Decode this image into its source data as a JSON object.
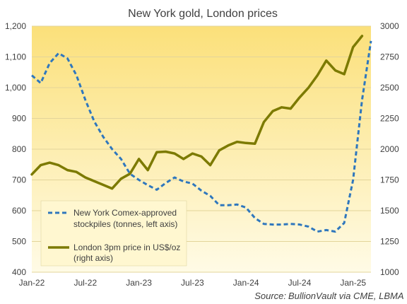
{
  "chart_data": {
    "type": "line",
    "title": "New York gold, London prices",
    "x_tick_labels": [
      "Jan-22",
      "Jul-22",
      "Jan-23",
      "Jul-23",
      "Jan-24",
      "Jul-24",
      "Jan-25"
    ],
    "x_range": [
      "2022-01",
      "2025-03"
    ],
    "y_left": {
      "range": [
        400,
        1200
      ],
      "ticks": [
        "400",
        "500",
        "600",
        "700",
        "800",
        "900",
        "1,000",
        "1,100",
        "1,200"
      ]
    },
    "y_right": {
      "range": [
        1000,
        3000
      ],
      "ticks": [
        "1000",
        "1250",
        "1500",
        "1750",
        "2000",
        "2250",
        "2500",
        "2750",
        "3000"
      ]
    },
    "grid": true,
    "legend_position": "bottom-left",
    "background_gradient": [
      "#fbe07a",
      "#fffbe6"
    ],
    "series": [
      {
        "name": "New York Comex-approved stockpiles (tonnes, left axis)",
        "axis": "left",
        "style": "dashed",
        "color": "#2f77bd",
        "points": [
          [
            "2022-01",
            1040
          ],
          [
            "2022-02",
            1015
          ],
          [
            "2022-03",
            1080
          ],
          [
            "2022-04",
            1112
          ],
          [
            "2022-05",
            1095
          ],
          [
            "2022-06",
            1040
          ],
          [
            "2022-07",
            960
          ],
          [
            "2022-08",
            890
          ],
          [
            "2022-09",
            840
          ],
          [
            "2022-10",
            800
          ],
          [
            "2022-11",
            768
          ],
          [
            "2022-12",
            720
          ],
          [
            "2023-01",
            700
          ],
          [
            "2023-02",
            683
          ],
          [
            "2023-03",
            668
          ],
          [
            "2023-04",
            690
          ],
          [
            "2023-05",
            708
          ],
          [
            "2023-06",
            695
          ],
          [
            "2023-07",
            688
          ],
          [
            "2023-08",
            665
          ],
          [
            "2023-09",
            648
          ],
          [
            "2023-10",
            618
          ],
          [
            "2023-11",
            618
          ],
          [
            "2023-12",
            620
          ],
          [
            "2024-01",
            610
          ],
          [
            "2024-02",
            576
          ],
          [
            "2024-03",
            557
          ],
          [
            "2024-04",
            555
          ],
          [
            "2024-05",
            555
          ],
          [
            "2024-06",
            557
          ],
          [
            "2024-07",
            555
          ],
          [
            "2024-08",
            548
          ],
          [
            "2024-09",
            532
          ],
          [
            "2024-10",
            537
          ],
          [
            "2024-11",
            532
          ],
          [
            "2024-12",
            560
          ],
          [
            "2025-01",
            700
          ],
          [
            "2025-02",
            960
          ],
          [
            "2025-03",
            1152
          ]
        ]
      },
      {
        "name": "London 3pm price in US$/oz (right axis)",
        "axis": "right",
        "style": "solid",
        "color": "#7c7a00",
        "points": [
          [
            "2022-01",
            1795
          ],
          [
            "2022-02",
            1870
          ],
          [
            "2022-03",
            1890
          ],
          [
            "2022-04",
            1870
          ],
          [
            "2022-05",
            1830
          ],
          [
            "2022-06",
            1815
          ],
          [
            "2022-07",
            1770
          ],
          [
            "2022-08",
            1740
          ],
          [
            "2022-09",
            1710
          ],
          [
            "2022-10",
            1680
          ],
          [
            "2022-11",
            1760
          ],
          [
            "2022-12",
            1800
          ],
          [
            "2023-01",
            1920
          ],
          [
            "2023-02",
            1830
          ],
          [
            "2023-03",
            1975
          ],
          [
            "2023-04",
            1980
          ],
          [
            "2023-05",
            1965
          ],
          [
            "2023-06",
            1920
          ],
          [
            "2023-07",
            1965
          ],
          [
            "2023-08",
            1940
          ],
          [
            "2023-09",
            1870
          ],
          [
            "2023-10",
            1990
          ],
          [
            "2023-11",
            2030
          ],
          [
            "2023-12",
            2060
          ],
          [
            "2024-01",
            2050
          ],
          [
            "2024-02",
            2045
          ],
          [
            "2024-03",
            2220
          ],
          [
            "2024-04",
            2310
          ],
          [
            "2024-05",
            2340
          ],
          [
            "2024-06",
            2330
          ],
          [
            "2024-07",
            2420
          ],
          [
            "2024-08",
            2500
          ],
          [
            "2024-09",
            2600
          ],
          [
            "2024-10",
            2720
          ],
          [
            "2024-11",
            2640
          ],
          [
            "2024-12",
            2610
          ],
          [
            "2025-01",
            2830
          ],
          [
            "2025-02",
            2920
          ]
        ]
      }
    ],
    "legend": [
      {
        "lines": [
          "New York Comex-approved",
          "stockpiles (tonnes, left axis)"
        ]
      },
      {
        "lines": [
          "London 3pm price in US$/oz",
          "(right axis)"
        ]
      }
    ],
    "source_label": "Source:",
    "source_text": "BullionVault via  CME, LBMA"
  }
}
